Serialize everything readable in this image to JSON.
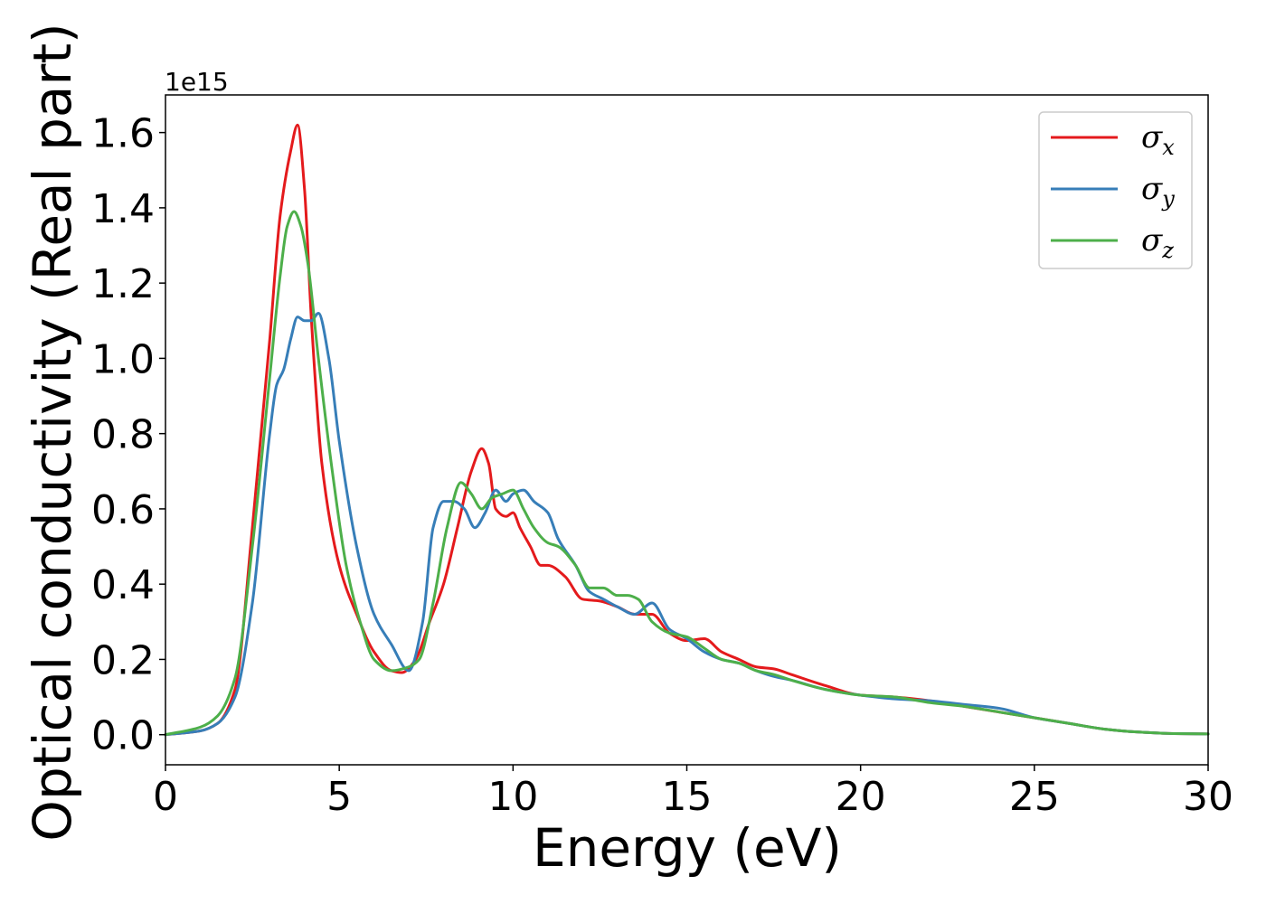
{
  "chart_data": {
    "type": "line",
    "xlabel": "Energy (eV)",
    "ylabel": "Optical conductivity (Real part)",
    "y_offset_label": "1e15",
    "xlim": [
      0,
      30
    ],
    "ylim": [
      -0.08,
      1.7
    ],
    "xticks": [
      0,
      5,
      10,
      15,
      20,
      25,
      30
    ],
    "yticks": [
      0.0,
      0.2,
      0.4,
      0.6,
      0.8,
      1.0,
      1.2,
      1.4,
      1.6
    ],
    "ytick_labels": [
      "0.0",
      "0.2",
      "0.4",
      "0.6",
      "0.8",
      "1.0",
      "1.2",
      "1.4",
      "1.6"
    ],
    "grid": false,
    "legend_position": "top-right",
    "series": [
      {
        "name": "σx",
        "symbol": "σ",
        "subscript": "x",
        "color": "#e41a1c",
        "x": [
          0,
          1,
          1.5,
          2,
          2.5,
          3,
          3.3,
          3.6,
          3.8,
          4.0,
          4.2,
          4.5,
          5,
          5.5,
          6,
          6.5,
          6.8,
          7.2,
          7.6,
          8,
          8.4,
          8.8,
          9.1,
          9.3,
          9.5,
          9.8,
          10,
          10.2,
          10.5,
          10.8,
          11,
          11.5,
          12,
          12.5,
          13,
          13.5,
          14,
          14.5,
          15,
          15.5,
          16,
          16.5,
          17,
          17.5,
          18,
          19,
          20,
          21,
          22,
          23,
          24,
          25,
          26,
          27,
          28,
          29,
          30
        ],
        "values": [
          0,
          0.01,
          0.03,
          0.12,
          0.55,
          1.05,
          1.38,
          1.55,
          1.62,
          1.45,
          1.1,
          0.72,
          0.45,
          0.32,
          0.22,
          0.17,
          0.165,
          0.2,
          0.3,
          0.4,
          0.55,
          0.7,
          0.76,
          0.72,
          0.6,
          0.58,
          0.59,
          0.55,
          0.5,
          0.45,
          0.45,
          0.42,
          0.36,
          0.355,
          0.34,
          0.32,
          0.32,
          0.27,
          0.25,
          0.255,
          0.22,
          0.2,
          0.18,
          0.175,
          0.16,
          0.13,
          0.105,
          0.1,
          0.09,
          0.075,
          0.06,
          0.045,
          0.03,
          0.015,
          0.007,
          0.003,
          0.002
        ]
      },
      {
        "name": "σy",
        "symbol": "σ",
        "subscript": "y",
        "color": "#377eb8",
        "x": [
          0,
          1,
          1.5,
          2,
          2.5,
          3,
          3.2,
          3.4,
          3.6,
          3.8,
          4.0,
          4.2,
          4.4,
          4.7,
          5,
          5.5,
          6,
          6.5,
          7,
          7.4,
          7.7,
          8,
          8.3,
          8.6,
          8.9,
          9.2,
          9.5,
          9.8,
          10,
          10.3,
          10.6,
          11,
          11.3,
          11.8,
          12.2,
          12.6,
          13,
          13.5,
          14,
          14.5,
          15,
          15.5,
          16,
          16.5,
          17,
          17.5,
          18,
          19,
          20,
          21,
          22,
          23,
          24,
          25,
          26,
          27,
          28,
          29,
          30
        ],
        "values": [
          0,
          0.01,
          0.03,
          0.1,
          0.35,
          0.8,
          0.93,
          0.97,
          1.05,
          1.11,
          1.1,
          1.1,
          1.12,
          1.0,
          0.78,
          0.5,
          0.32,
          0.24,
          0.17,
          0.3,
          0.55,
          0.62,
          0.62,
          0.6,
          0.55,
          0.59,
          0.65,
          0.62,
          0.64,
          0.65,
          0.62,
          0.59,
          0.52,
          0.45,
          0.38,
          0.36,
          0.34,
          0.32,
          0.35,
          0.28,
          0.255,
          0.22,
          0.2,
          0.19,
          0.17,
          0.155,
          0.145,
          0.12,
          0.105,
          0.095,
          0.09,
          0.08,
          0.07,
          0.045,
          0.03,
          0.015,
          0.007,
          0.003,
          0.002
        ]
      },
      {
        "name": "σz",
        "symbol": "σ",
        "subscript": "z",
        "color": "#4daf4a",
        "x": [
          0,
          1,
          1.5,
          2,
          2.5,
          3,
          3.3,
          3.5,
          3.7,
          3.9,
          4.1,
          4.4,
          4.8,
          5.2,
          5.6,
          6,
          6.5,
          7,
          7.3,
          7.7,
          8.1,
          8.5,
          8.8,
          9.1,
          9.4,
          9.7,
          10,
          10.3,
          10.6,
          11,
          11.3,
          11.8,
          12.2,
          12.6,
          13,
          13.3,
          13.6,
          14,
          14.5,
          15,
          15.5,
          16,
          16.5,
          17,
          17.5,
          18,
          19,
          20,
          21,
          22,
          23,
          24,
          25,
          26,
          27,
          28,
          29,
          30
        ],
        "values": [
          0,
          0.02,
          0.05,
          0.15,
          0.5,
          0.95,
          1.22,
          1.35,
          1.39,
          1.35,
          1.25,
          1.0,
          0.7,
          0.45,
          0.3,
          0.2,
          0.17,
          0.18,
          0.2,
          0.35,
          0.55,
          0.67,
          0.64,
          0.6,
          0.63,
          0.64,
          0.65,
          0.6,
          0.55,
          0.51,
          0.5,
          0.45,
          0.39,
          0.39,
          0.37,
          0.37,
          0.36,
          0.3,
          0.27,
          0.26,
          0.23,
          0.2,
          0.19,
          0.17,
          0.16,
          0.145,
          0.12,
          0.105,
          0.1,
          0.085,
          0.075,
          0.06,
          0.045,
          0.03,
          0.015,
          0.007,
          0.003,
          0.002
        ]
      }
    ]
  }
}
